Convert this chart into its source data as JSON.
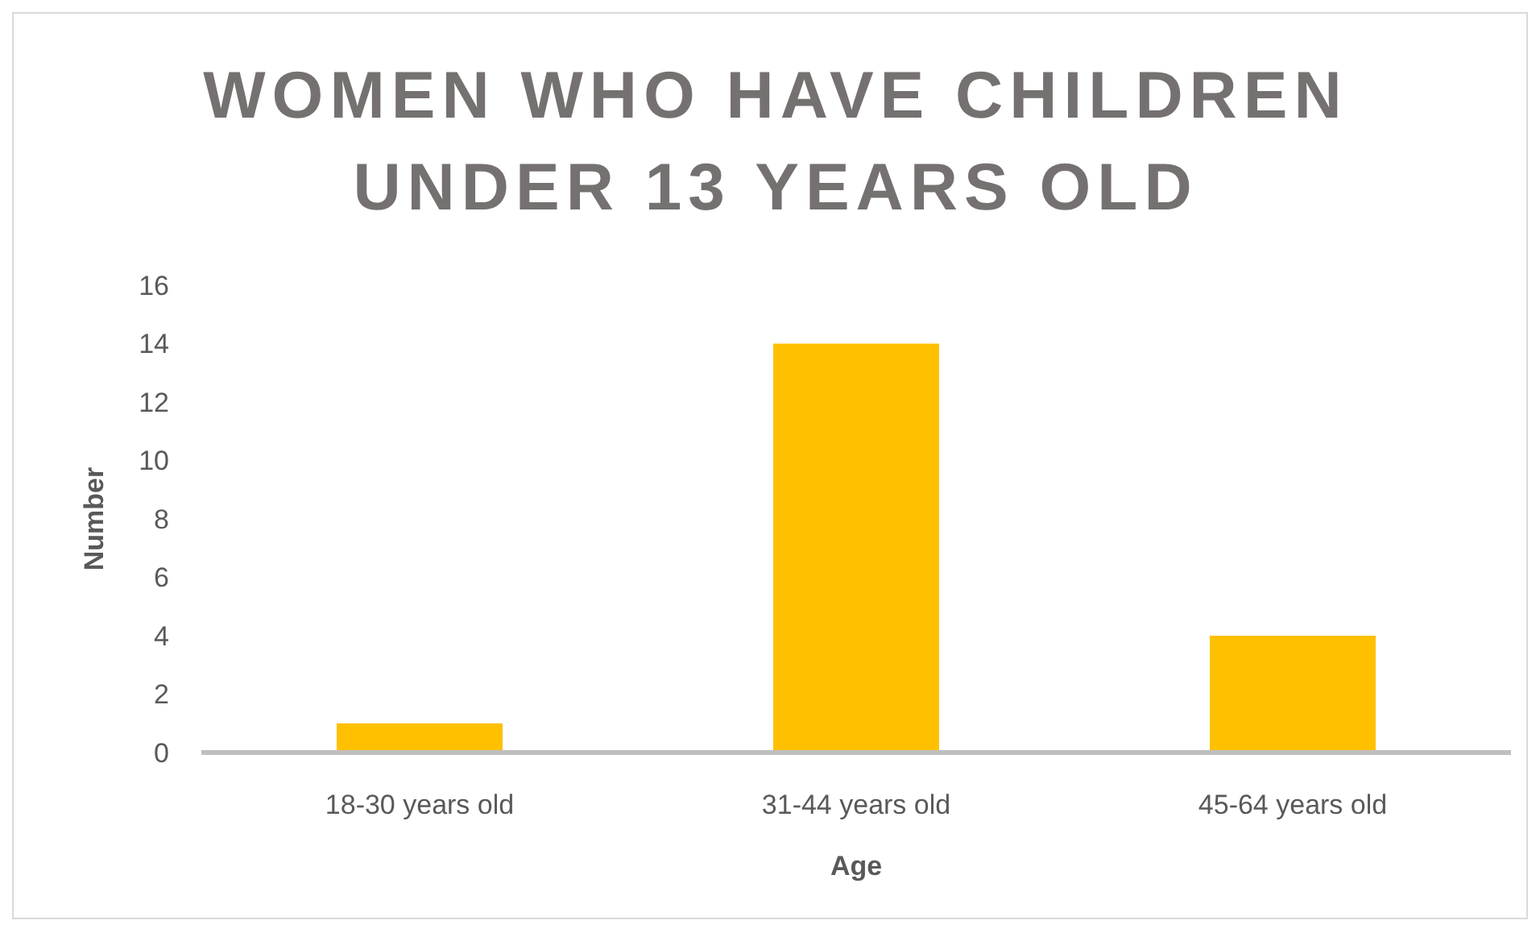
{
  "chart_data": {
    "type": "bar",
    "title": "WOMEN WHO HAVE CHILDREN UNDER 13 YEARS OLD",
    "xlabel": "Age",
    "ylabel": "Number",
    "categories": [
      "18-30 years old",
      "31-44 years old",
      "45-64 years old"
    ],
    "series": [
      {
        "color": "#ffc000",
        "values": [
          1,
          14,
          4
        ]
      }
    ],
    "ylim": [
      0,
      16
    ],
    "yticks": [
      0,
      2,
      4,
      6,
      8,
      10,
      12,
      14,
      16
    ],
    "grid": false
  }
}
